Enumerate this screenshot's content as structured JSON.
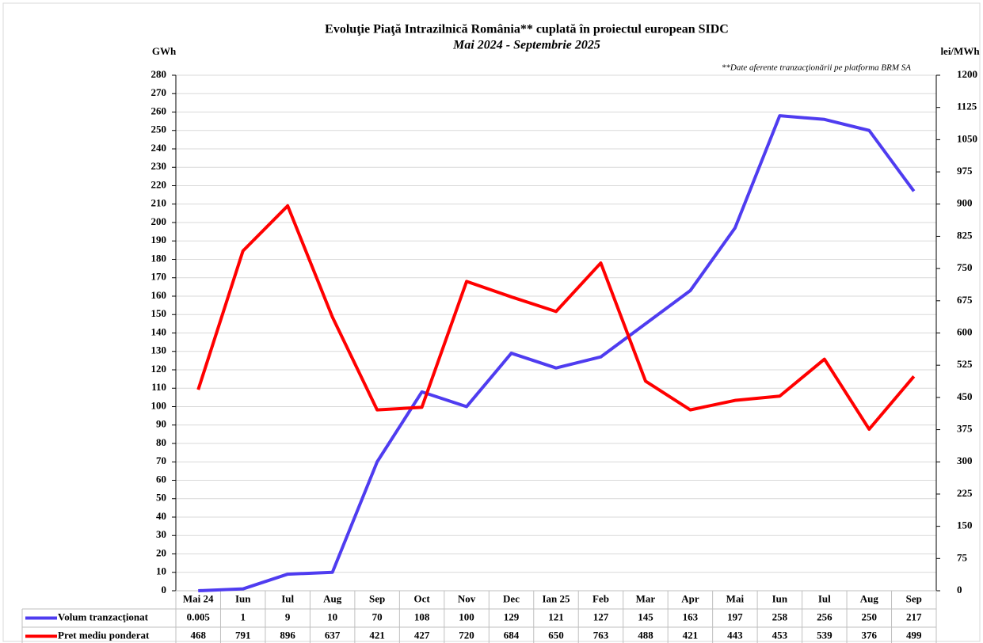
{
  "chart_data": {
    "type": "line",
    "title": "Evoluţie Piaţă Intrazilnică România** cuplată în proiectul  european SIDC",
    "subtitle": "Mai 2024 - Septembrie 2025",
    "annotation": "**Date aferente tranzacţionării pe platforma BRM SA",
    "y_label": "GWh",
    "y2_label": "lei/MWh",
    "categories": [
      "Mai 24",
      "Iun",
      "Iul",
      "Aug",
      "Sep",
      "Oct",
      "Nov",
      "Dec",
      "Ian 25",
      "Feb",
      "Mar",
      "Apr",
      "Mai",
      "Iun",
      "Iul",
      "Aug",
      "Sep"
    ],
    "series": [
      {
        "name": "Volum tranzacţionat",
        "color": "#4f3cf0",
        "values": [
          0.005,
          1,
          9,
          10,
          70,
          108,
          100,
          129,
          121,
          127,
          145,
          163,
          197,
          258,
          256,
          250,
          217
        ]
      },
      {
        "name": "Pret mediu ponderat",
        "color": "#ff0000",
        "axis": "y2",
        "values": [
          468,
          791,
          896,
          637,
          421,
          427,
          720,
          684,
          650,
          763,
          488,
          421,
          443,
          453,
          539,
          376,
          499
        ]
      }
    ],
    "ylim": [
      0,
      280
    ],
    "yticks": [
      0,
      10,
      20,
      30,
      40,
      50,
      60,
      70,
      80,
      90,
      100,
      110,
      120,
      130,
      140,
      150,
      160,
      170,
      180,
      190,
      200,
      210,
      220,
      230,
      240,
      250,
      260,
      270,
      280
    ],
    "y2lim": [
      0,
      1200
    ],
    "y2ticks": [
      0,
      75,
      150,
      225,
      300,
      375,
      450,
      525,
      600,
      675,
      750,
      825,
      900,
      975,
      1050,
      1125,
      1200
    ],
    "grid": true
  }
}
